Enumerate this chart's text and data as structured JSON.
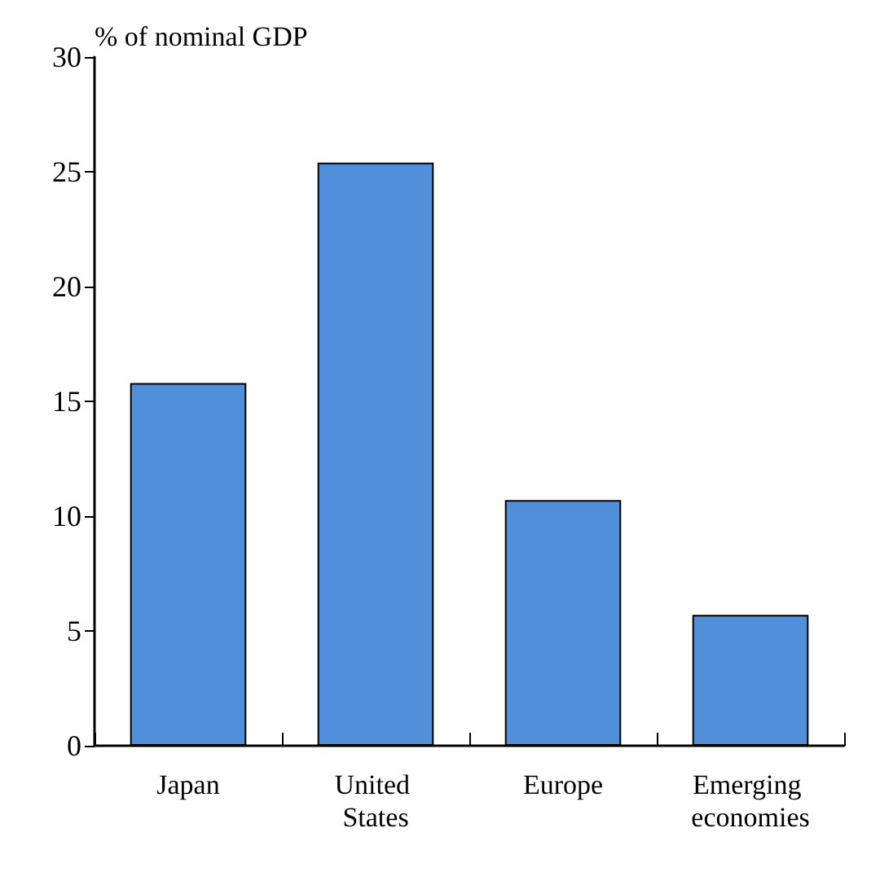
{
  "chart_data": {
    "type": "bar",
    "ylabel": "% of nominal GDP",
    "categories": [
      "Japan",
      "United States",
      "Europe",
      "Emerging economies"
    ],
    "values": [
      15.8,
      25.4,
      10.7,
      5.7
    ],
    "color": "#528fda",
    "ylim": [
      0,
      30
    ],
    "yticks": [
      0,
      5,
      10,
      15,
      20,
      25,
      30
    ]
  }
}
